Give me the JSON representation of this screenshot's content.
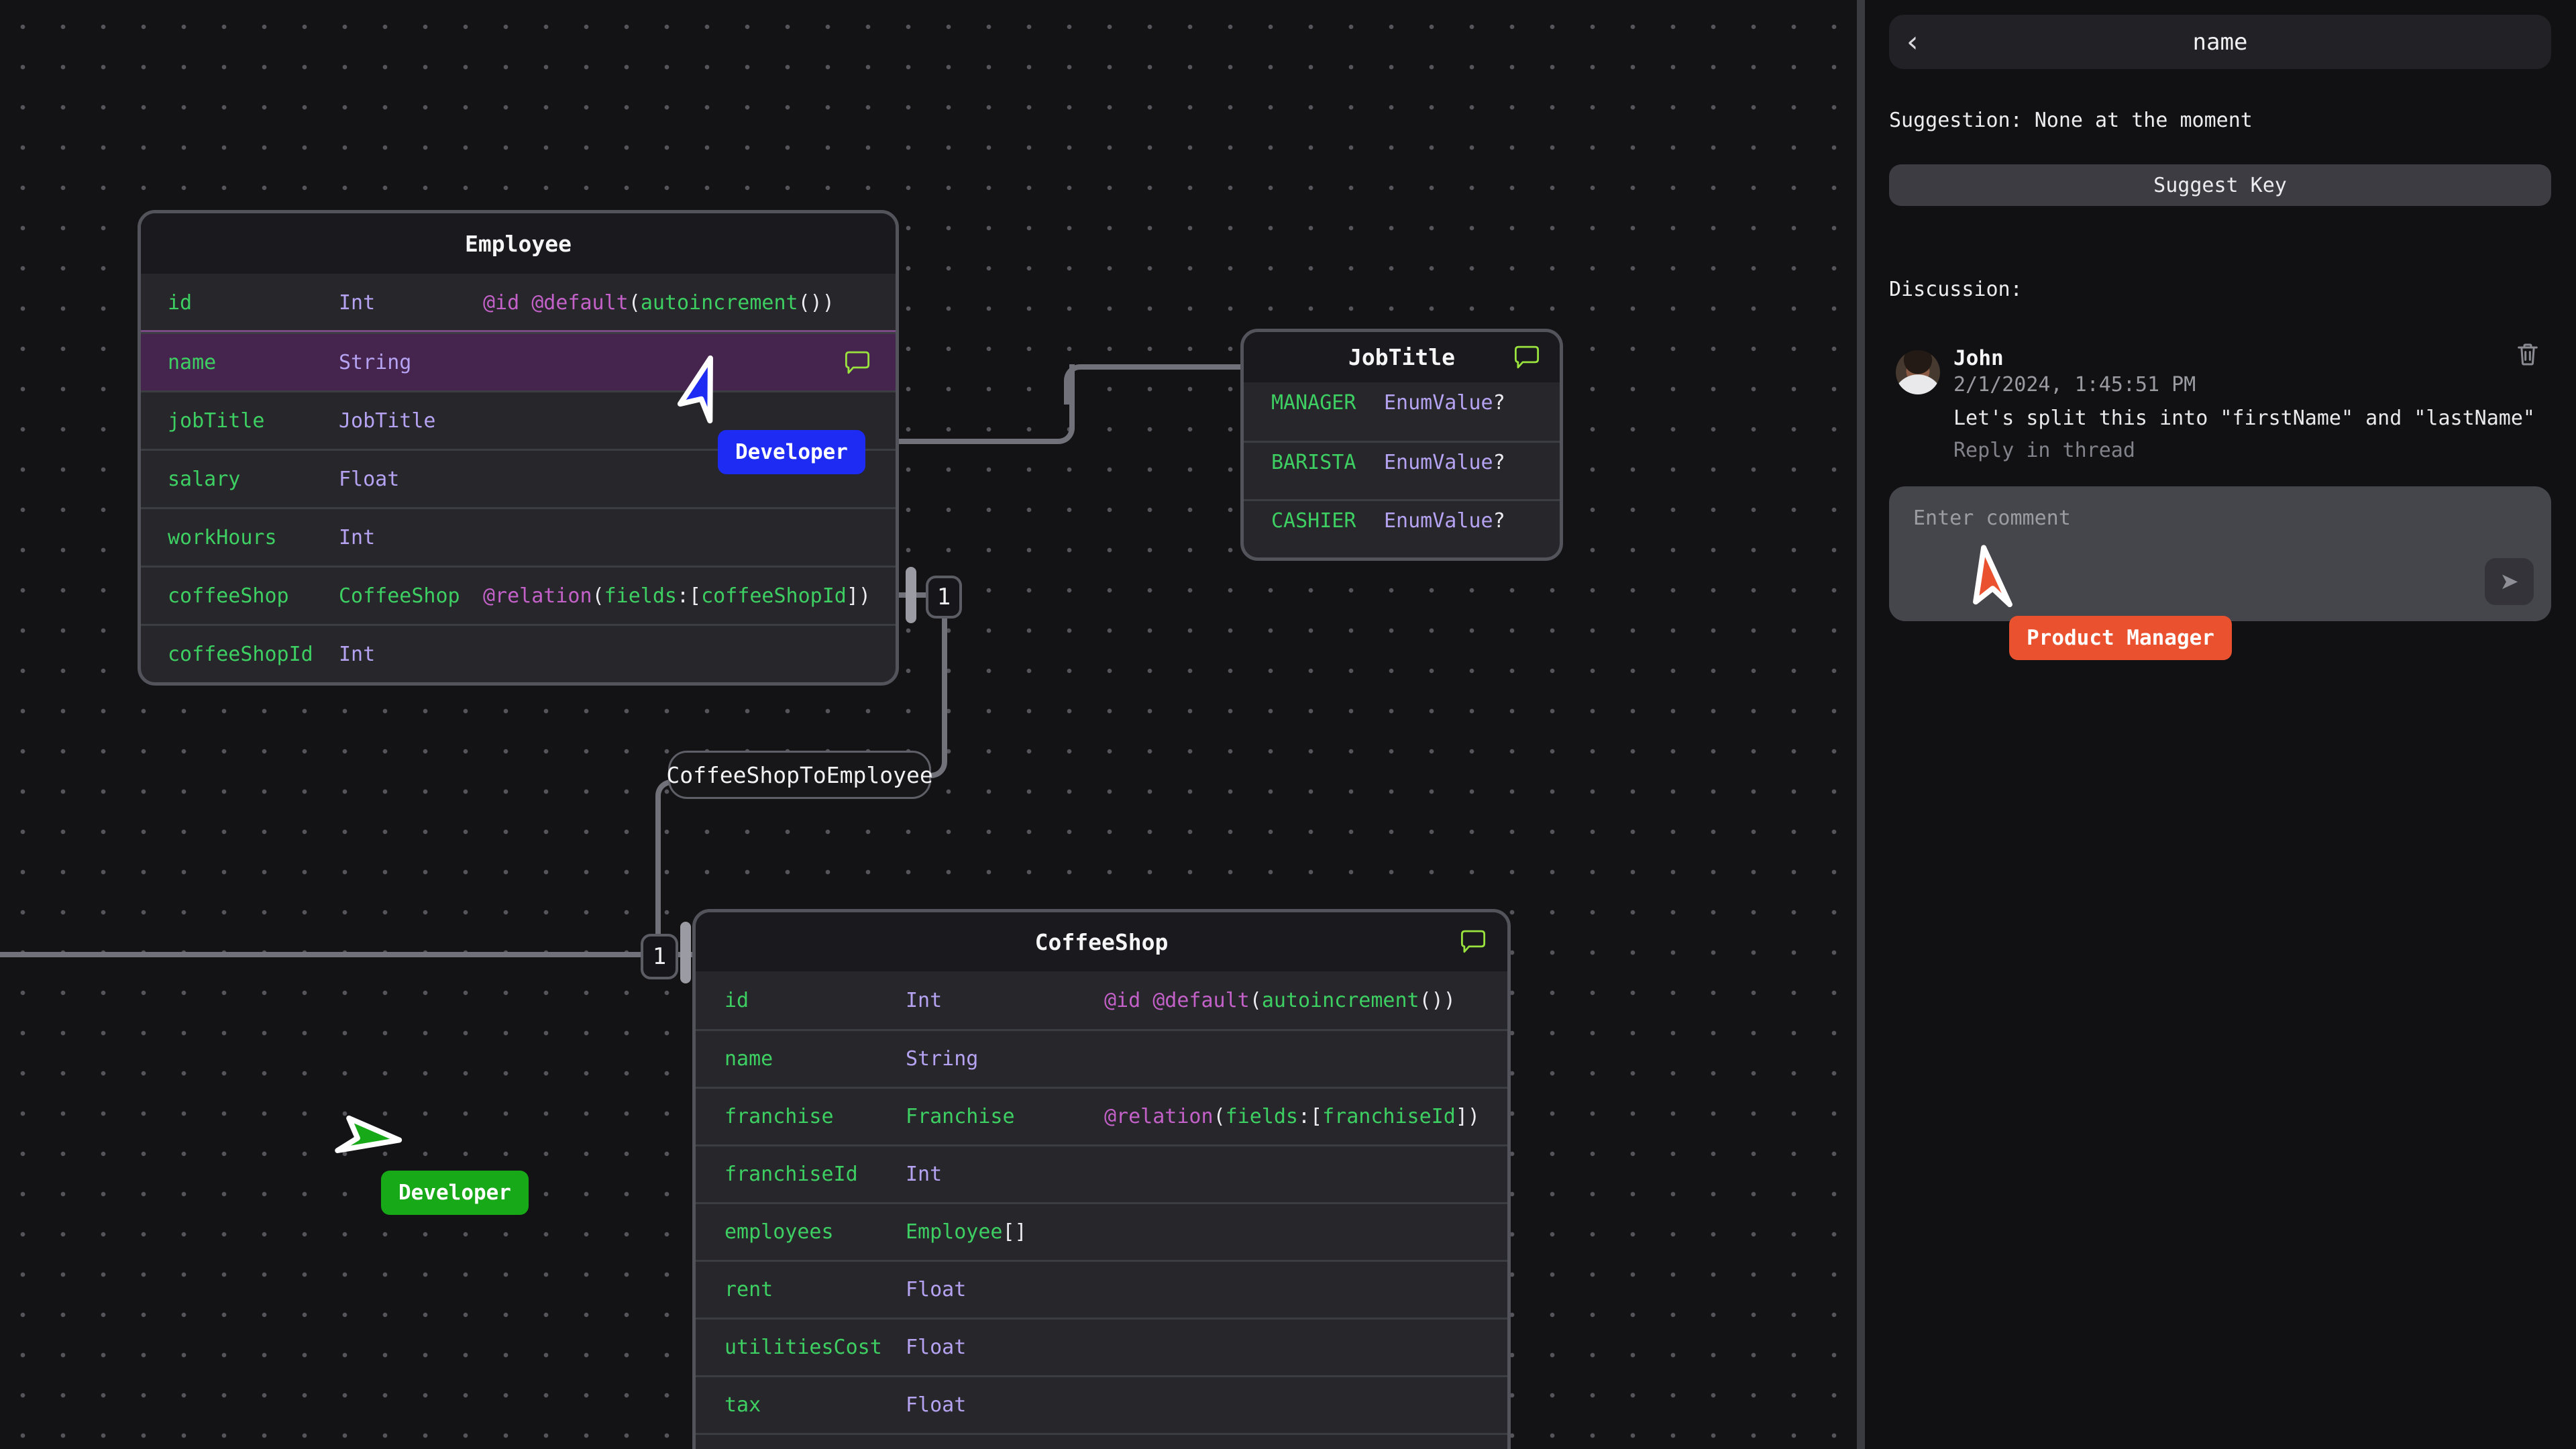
{
  "canvas": {
    "relation_label": "CoffeeShopToEmployee",
    "badge_employee_side": "1",
    "badge_coffeeshop_side": "1",
    "entities": [
      {
        "title": "Employee",
        "header_comment_icon": false,
        "fields": [
          {
            "name": "id",
            "type": "Int",
            "type_color": "lavender",
            "attr": [
              [
                "@id @default",
                "magenta"
              ],
              [
                "(",
                "white"
              ],
              [
                "autoincrement",
                "green"
              ],
              [
                "())",
                "white"
              ]
            ]
          },
          {
            "name": "name",
            "type": "String",
            "type_color": "lavender",
            "highlight": true,
            "comment_icon": true
          },
          {
            "name": "jobTitle",
            "type": "JobTitle",
            "type_color": "lavender"
          },
          {
            "name": "salary",
            "type": "Float",
            "type_color": "lavender"
          },
          {
            "name": "workHours",
            "type": "Int",
            "type_color": "lavender"
          },
          {
            "name": "coffeeShop",
            "type": "CoffeeShop",
            "type_color": "green",
            "attr": [
              [
                "@relation",
                "magenta"
              ],
              [
                "(",
                "white"
              ],
              [
                "fields",
                "green"
              ],
              [
                ":[",
                "white"
              ],
              [
                "coffeeShopId",
                "green"
              ],
              [
                "])",
                "white"
              ]
            ]
          },
          {
            "name": "coffeeShopId",
            "type": "Int",
            "type_color": "lavender"
          }
        ]
      },
      {
        "title": "JobTitle",
        "header_comment_icon": true,
        "fields": [
          {
            "name": "MANAGER",
            "type": "EnumValue",
            "type_color": "lavender",
            "type_suffix": "?"
          },
          {
            "name": "BARISTA",
            "type": "EnumValue",
            "type_color": "lavender",
            "type_suffix": "?"
          },
          {
            "name": "CASHIER",
            "type": "EnumValue",
            "type_color": "lavender",
            "type_suffix": "?"
          }
        ]
      },
      {
        "title": "CoffeeShop",
        "header_comment_icon": true,
        "fields": [
          {
            "name": "id",
            "type": "Int",
            "type_color": "lavender",
            "attr": [
              [
                "@id @default",
                "magenta"
              ],
              [
                "(",
                "white"
              ],
              [
                "autoincrement",
                "green"
              ],
              [
                "())",
                "white"
              ]
            ]
          },
          {
            "name": "name",
            "type": "String",
            "type_color": "lavender"
          },
          {
            "name": "franchise",
            "type": "Franchise",
            "type_color": "green",
            "attr": [
              [
                "@relation",
                "magenta"
              ],
              [
                "(",
                "white"
              ],
              [
                "fields",
                "green"
              ],
              [
                ":[",
                "white"
              ],
              [
                "franchiseId",
                "green"
              ],
              [
                "])",
                "white"
              ]
            ]
          },
          {
            "name": "franchiseId",
            "type": "Int",
            "type_color": "lavender"
          },
          {
            "name": "employees",
            "type": "Employee",
            "type_color": "green",
            "type_suffix": "[]"
          },
          {
            "name": "rent",
            "type": "Float",
            "type_color": "lavender"
          },
          {
            "name": "utilitiesCost",
            "type": "Float",
            "type_color": "lavender"
          },
          {
            "name": "tax",
            "type": "Float",
            "type_color": "lavender"
          },
          {
            "name": "",
            "type": "",
            "type_color": "lavender"
          }
        ]
      }
    ],
    "cursors": [
      {
        "label": "Developer",
        "color": "#1e2bf2"
      },
      {
        "label": "Developer",
        "color": "#17a918"
      },
      {
        "label": "Product Manager",
        "color": "#ea512e"
      }
    ]
  },
  "sidebar": {
    "title": "name",
    "suggestion": "Suggestion: None at the moment",
    "suggest_button": "Suggest Key",
    "discussion_label": "Discussion:",
    "comment": {
      "author": "John",
      "timestamp": "2/1/2024, 1:45:51 PM",
      "text": "Let's split this into \"firstName\" and \"lastName\"",
      "reply_link": "Reply in thread"
    },
    "input_placeholder": "Enter comment"
  },
  "icons": {
    "back": "‹",
    "send": "➤",
    "comment_bubble_color": "#9ae23e",
    "trash": "trash-outline"
  },
  "colors": {
    "cursor_blue": "#1e2bf2",
    "cursor_green": "#17a918",
    "cursor_orange": "#ea512e",
    "field_green": "#3ecf63",
    "type_lavender": "#b5a3f2",
    "attr_magenta": "#c361c9",
    "highlight_row": "#45254e"
  }
}
